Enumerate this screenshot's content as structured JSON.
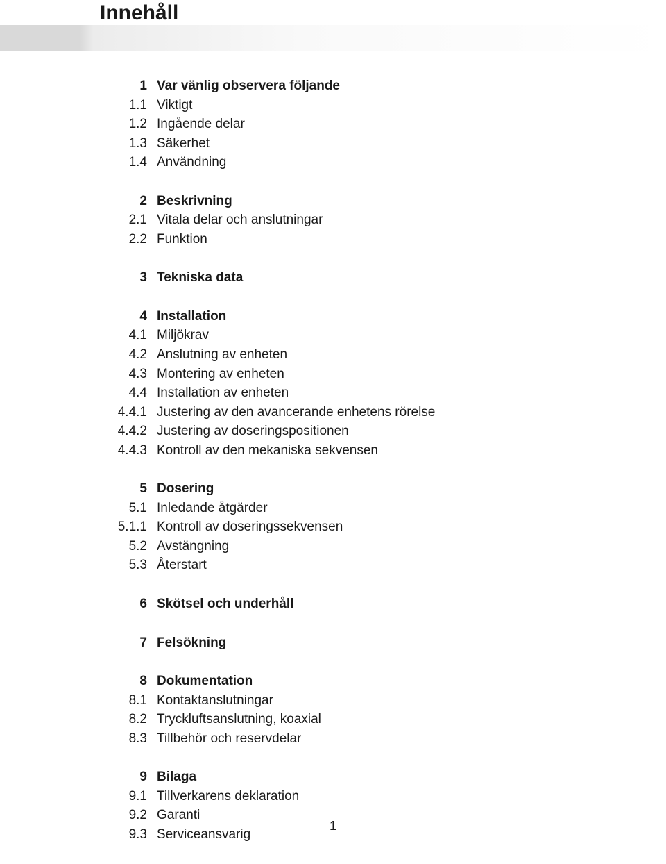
{
  "title": "Innehåll",
  "page_number": "1",
  "groups": [
    [
      {
        "num": "1",
        "label": "Var vänlig observera följande",
        "bold": true
      },
      {
        "num": "1.1",
        "label": "Viktigt"
      },
      {
        "num": "1.2",
        "label": "Ingående delar"
      },
      {
        "num": "1.3",
        "label": "Säkerhet"
      },
      {
        "num": "1.4",
        "label": "Användning"
      }
    ],
    [
      {
        "num": "2",
        "label": "Beskrivning",
        "bold": true
      },
      {
        "num": "2.1",
        "label": "Vitala delar och anslutningar"
      },
      {
        "num": "2.2",
        "label": "Funktion"
      }
    ],
    [
      {
        "num": "3",
        "label": "Tekniska data",
        "bold": true
      }
    ],
    [
      {
        "num": "4",
        "label": "Installation",
        "bold": true
      },
      {
        "num": "4.1",
        "label": "Miljökrav"
      },
      {
        "num": "4.2",
        "label": "Anslutning av enheten"
      },
      {
        "num": "4.3",
        "label": "Montering av enheten"
      },
      {
        "num": "4.4",
        "label": "Installation av enheten"
      },
      {
        "num": "4.4.1",
        "label": "Justering av den avancerande enhetens rörelse"
      },
      {
        "num": "4.4.2",
        "label": "Justering av doseringspositionen"
      },
      {
        "num": "4.4.3",
        "label": "Kontroll av den mekaniska sekvensen"
      }
    ],
    [
      {
        "num": "5",
        "label": "Dosering",
        "bold": true
      },
      {
        "num": "5.1",
        "label": "Inledande åtgärder"
      },
      {
        "num": "5.1.1",
        "label": "Kontroll av doseringssekvensen"
      },
      {
        "num": "5.2",
        "label": "Avstängning"
      },
      {
        "num": "5.3",
        "label": "Återstart"
      }
    ],
    [
      {
        "num": "6",
        "label": "Skötsel och underhåll",
        "bold": true
      }
    ],
    [
      {
        "num": "7",
        "label": "Felsökning",
        "bold": true
      }
    ],
    [
      {
        "num": "8",
        "label": "Dokumentation",
        "bold": true
      },
      {
        "num": "8.1",
        "label": "Kontaktanslutningar"
      },
      {
        "num": "8.2",
        "label": "Tryckluftsanslutning, koaxial"
      },
      {
        "num": "8.3",
        "label": "Tillbehör och reservdelar"
      }
    ],
    [
      {
        "num": "9",
        "label": "Bilaga",
        "bold": true
      },
      {
        "num": "9.1",
        "label": "Tillverkarens deklaration"
      },
      {
        "num": "9.2",
        "label": "Garanti"
      },
      {
        "num": "9.3",
        "label": "Serviceansvarig"
      }
    ]
  ]
}
